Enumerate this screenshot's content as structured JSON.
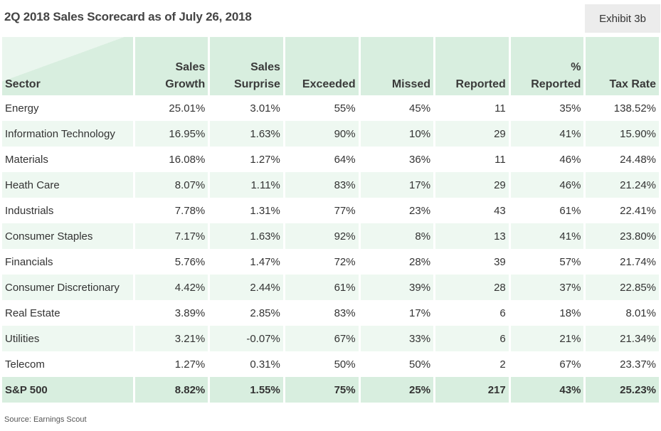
{
  "title": "2Q 2018 Sales Scorecard as of July 26, 2018",
  "exhibit": "Exhibit 3b",
  "headers": {
    "sector": "Sector",
    "sales_growth_1": "Sales",
    "sales_growth_2": "Growth",
    "sales_surprise_1": "Sales",
    "sales_surprise_2": "Surprise",
    "exceeded": "Exceeded",
    "missed": "Missed",
    "reported": "Reported",
    "pct_reported_1": "%",
    "pct_reported_2": "Reported",
    "tax_rate": "Tax Rate"
  },
  "rows": [
    {
      "sector": "Energy",
      "sales_growth": "25.01%",
      "sales_surprise": "3.01%",
      "exceeded": "55%",
      "missed": "45%",
      "reported": "11",
      "pct_reported": "35%",
      "tax_rate": "138.52%"
    },
    {
      "sector": "Information Technology",
      "sales_growth": "16.95%",
      "sales_surprise": "1.63%",
      "exceeded": "90%",
      "missed": "10%",
      "reported": "29",
      "pct_reported": "41%",
      "tax_rate": "15.90%"
    },
    {
      "sector": "Materials",
      "sales_growth": "16.08%",
      "sales_surprise": "1.27%",
      "exceeded": "64%",
      "missed": "36%",
      "reported": "11",
      "pct_reported": "46%",
      "tax_rate": "24.48%"
    },
    {
      "sector": "Heath Care",
      "sales_growth": "8.07%",
      "sales_surprise": "1.11%",
      "exceeded": "83%",
      "missed": "17%",
      "reported": "29",
      "pct_reported": "46%",
      "tax_rate": "21.24%"
    },
    {
      "sector": "Industrials",
      "sales_growth": "7.78%",
      "sales_surprise": "1.31%",
      "exceeded": "77%",
      "missed": "23%",
      "reported": "43",
      "pct_reported": "61%",
      "tax_rate": "22.41%"
    },
    {
      "sector": "Consumer Staples",
      "sales_growth": "7.17%",
      "sales_surprise": "1.63%",
      "exceeded": "92%",
      "missed": "8%",
      "reported": "13",
      "pct_reported": "41%",
      "tax_rate": "23.80%"
    },
    {
      "sector": "Financials",
      "sales_growth": "5.76%",
      "sales_surprise": "1.47%",
      "exceeded": "72%",
      "missed": "28%",
      "reported": "39",
      "pct_reported": "57%",
      "tax_rate": "21.74%"
    },
    {
      "sector": "Consumer Discretionary",
      "sales_growth": "4.42%",
      "sales_surprise": "2.44%",
      "exceeded": "61%",
      "missed": "39%",
      "reported": "28",
      "pct_reported": "37%",
      "tax_rate": "22.85%"
    },
    {
      "sector": "Real Estate",
      "sales_growth": "3.89%",
      "sales_surprise": "2.85%",
      "exceeded": "83%",
      "missed": "17%",
      "reported": "6",
      "pct_reported": "18%",
      "tax_rate": "8.01%"
    },
    {
      "sector": "Utilities",
      "sales_growth": "3.21%",
      "sales_surprise": "-0.07%",
      "exceeded": "67%",
      "missed": "33%",
      "reported": "6",
      "pct_reported": "21%",
      "tax_rate": "21.34%"
    },
    {
      "sector": "Telecom",
      "sales_growth": "1.27%",
      "sales_surprise": "0.31%",
      "exceeded": "50%",
      "missed": "50%",
      "reported": "2",
      "pct_reported": "67%",
      "tax_rate": "23.37%"
    }
  ],
  "total": {
    "sector": "S&P 500",
    "sales_growth": "8.82%",
    "sales_surprise": "1.55%",
    "exceeded": "75%",
    "missed": "25%",
    "reported": "217",
    "pct_reported": "43%",
    "tax_rate": "25.23%"
  },
  "source": "Source: Earnings Scout",
  "colors": {
    "header_bg": "#d8eedf",
    "alt_row_bg": "#eef8f1",
    "exhibit_bg": "#ececec"
  }
}
